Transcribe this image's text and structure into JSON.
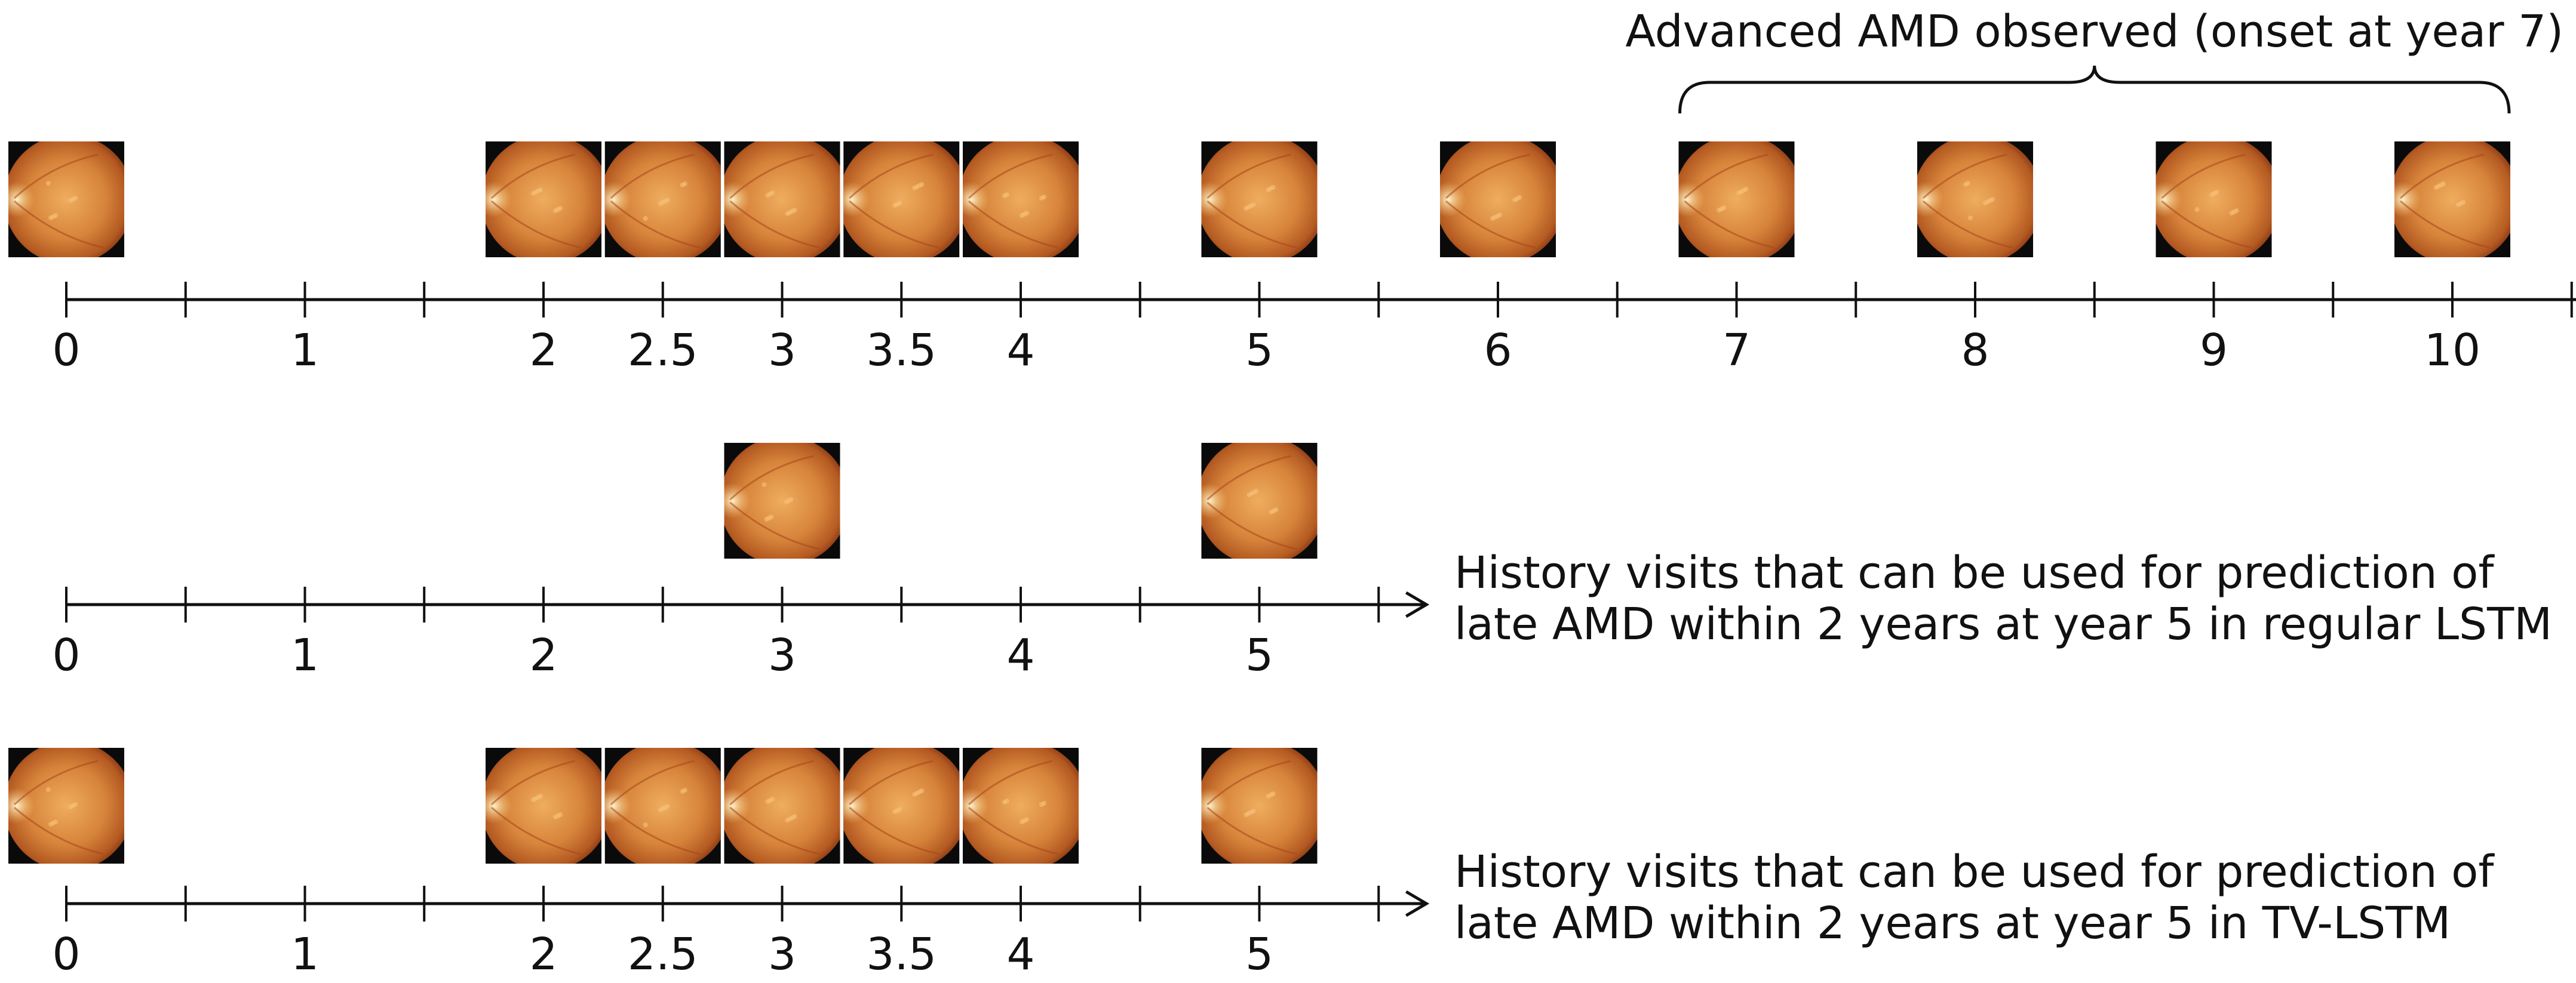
{
  "figure_title": "Advanced AMD observed (onset at year 7)",
  "colors": {
    "ink": "#111111",
    "fundus_center": "#e69a4a",
    "fundus_edge": "#9a3e16",
    "frame": "#0a0a0a"
  },
  "timelines": [
    {
      "id": "full",
      "axis_max": 10.5,
      "arrow": true,
      "labels": [
        {
          "value": 0,
          "text": "0"
        },
        {
          "value": 1,
          "text": "1"
        },
        {
          "value": 2,
          "text": "2"
        },
        {
          "value": 2.5,
          "text": "2.5"
        },
        {
          "value": 3,
          "text": "3"
        },
        {
          "value": 3.5,
          "text": "3.5"
        },
        {
          "value": 4,
          "text": "4"
        },
        {
          "value": 5,
          "text": "5"
        },
        {
          "value": 6,
          "text": "6"
        },
        {
          "value": 7,
          "text": "7"
        },
        {
          "value": 8,
          "text": "8"
        },
        {
          "value": 9,
          "text": "9"
        },
        {
          "value": 10,
          "text": "10"
        }
      ],
      "visits": [
        0,
        2,
        2.5,
        3,
        3.5,
        4,
        5,
        6,
        7,
        8,
        9,
        10
      ],
      "caption_lines": []
    },
    {
      "id": "regular-lstm",
      "axis_max": 5.5,
      "arrow": true,
      "labels": [
        {
          "value": 0,
          "text": "0"
        },
        {
          "value": 1,
          "text": "1"
        },
        {
          "value": 2,
          "text": "2"
        },
        {
          "value": 3,
          "text": "3"
        },
        {
          "value": 4,
          "text": "4"
        },
        {
          "value": 5,
          "text": "5"
        }
      ],
      "visits": [
        3,
        5
      ],
      "caption_lines": [
        "History visits that can be used for prediction of",
        "late AMD within 2 years at year 5 in regular LSTM"
      ]
    },
    {
      "id": "tv-lstm",
      "axis_max": 5.5,
      "arrow": true,
      "labels": [
        {
          "value": 0,
          "text": "0"
        },
        {
          "value": 1,
          "text": "1"
        },
        {
          "value": 2,
          "text": "2"
        },
        {
          "value": 2.5,
          "text": "2.5"
        },
        {
          "value": 3,
          "text": "3"
        },
        {
          "value": 3.5,
          "text": "3.5"
        },
        {
          "value": 4,
          "text": "4"
        },
        {
          "value": 5,
          "text": "5"
        }
      ],
      "visits": [
        0,
        2,
        2.5,
        3,
        3.5,
        4,
        5
      ],
      "caption_lines": [
        "History visits that can be used for prediction of",
        "late AMD within 2 years at year 5 in TV-LSTM"
      ]
    }
  ],
  "brace": {
    "from": 7,
    "to": 10
  }
}
